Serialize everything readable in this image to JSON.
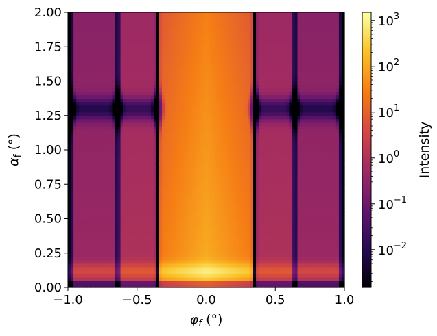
{
  "chart_data": {
    "type": "heatmap",
    "title": "",
    "xlabel": {
      "var": "φ",
      "sub": "f",
      "unit": "(°)"
    },
    "ylabel": {
      "var": "α",
      "sub": "f",
      "unit": "(°)"
    },
    "xlim": [
      -1.0,
      1.0
    ],
    "ylim": [
      0.0,
      2.0
    ],
    "x_ticks": [
      -1.0,
      -0.5,
      0.0,
      0.5,
      1.0
    ],
    "x_tick_labels": [
      "−1.0",
      "−0.5",
      "0.0",
      "0.5",
      "1.0"
    ],
    "y_ticks": [
      0.0,
      0.25,
      0.5,
      0.75,
      1.0,
      1.25,
      1.5,
      1.75,
      2.0
    ],
    "y_tick_labels": [
      "0.00",
      "0.25",
      "0.50",
      "0.75",
      "1.00",
      "1.25",
      "1.50",
      "1.75",
      "2.00"
    ],
    "colormap": "inferno",
    "color_scale": "log",
    "colorbar": {
      "label": "Intensity",
      "range": [
        0.0015,
        1500
      ],
      "ticks": [
        {
          "base": "10",
          "exp": "3",
          "value": 1000
        },
        {
          "base": "10",
          "exp": "2",
          "value": 100
        },
        {
          "base": "10",
          "exp": "1",
          "value": 10
        },
        {
          "base": "10",
          "exp": "0",
          "value": 1
        },
        {
          "base": "10",
          "exp": "−1",
          "value": 0.1
        },
        {
          "base": "10",
          "exp": "−2",
          "value": 0.01
        }
      ]
    },
    "dark_vertical_lines_x": [
      -0.98,
      -0.64,
      -0.35,
      0.35,
      0.64,
      0.98
    ],
    "dark_horizontal_band_y": 1.3,
    "bright_horizontal_band_y": 0.12,
    "peak_intensity_at": {
      "x": 0.0,
      "y": 0.12
    },
    "grid": false
  }
}
